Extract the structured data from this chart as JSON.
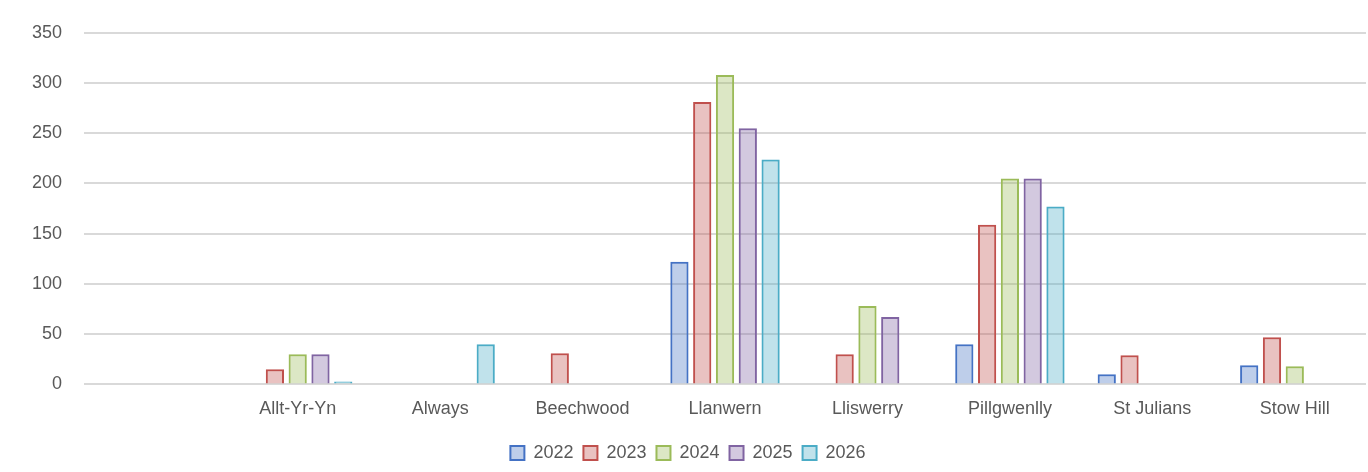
{
  "chart_data": {
    "type": "bar",
    "categories": [
      null,
      "Allt-Yr-Yn",
      "Always",
      "Beechwood",
      "Llanwern",
      "Lliswerry",
      "Pillgwenlly",
      "St Julians",
      "Stow Hill"
    ],
    "series": [
      {
        "name": "2022",
        "color": "#4472c4",
        "values": [
          null,
          null,
          null,
          null,
          122,
          null,
          40,
          10,
          19
        ]
      },
      {
        "name": "2023",
        "color": "#c0504d",
        "values": [
          null,
          15,
          null,
          31,
          281,
          30,
          159,
          29,
          47
        ]
      },
      {
        "name": "2024",
        "color": "#9bbb59",
        "values": [
          null,
          30,
          null,
          null,
          308,
          78,
          205,
          null,
          18
        ]
      },
      {
        "name": "2025",
        "color": "#8064a2",
        "values": [
          null,
          30,
          null,
          null,
          255,
          67,
          205,
          null,
          null
        ]
      },
      {
        "name": "2026",
        "color": "#4bacc6",
        "values": [
          null,
          3,
          40,
          null,
          224,
          null,
          177,
          null,
          null
        ]
      }
    ],
    "ylim": [
      0,
      350
    ],
    "yticks": [
      0,
      50,
      100,
      150,
      200,
      250,
      300,
      350
    ],
    "grid": "y",
    "legend": "bottom"
  }
}
